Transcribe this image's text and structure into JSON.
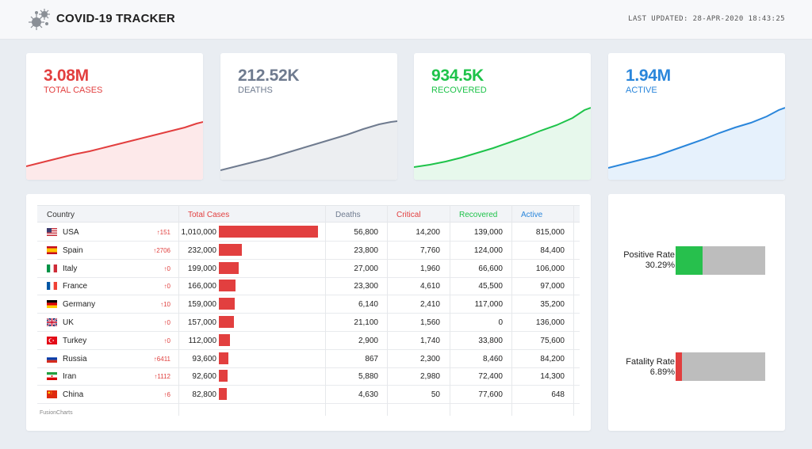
{
  "header": {
    "title": "COVID-19 TRACKER",
    "last_updated": "LAST UPDATED: 28-APR-2020 18:43:25",
    "logo_icon": "virus-icon"
  },
  "stats": [
    {
      "value": "3.08M",
      "label": "TOTAL CASES",
      "color": "#e23f3f",
      "fill": "#fde9ea"
    },
    {
      "value": "212.52K",
      "label": "DEATHS",
      "color": "#6f7b8f",
      "fill": "#eceef1"
    },
    {
      "value": "934.5K",
      "label": "RECOVERED",
      "color": "#1ec34a",
      "fill": "#e7f8ec"
    },
    {
      "value": "1.94M",
      "label": "ACTIVE",
      "color": "#2a86db",
      "fill": "#e6f1fc"
    }
  ],
  "table": {
    "headers": {
      "country": "Country",
      "total_cases": "Total Cases",
      "deaths": "Deaths",
      "critical": "Critical",
      "recovered": "Recovered",
      "active": "Active"
    },
    "header_colors": {
      "total_cases": "#e23f3f",
      "deaths": "#6f7b8f",
      "critical": "#e23f3f",
      "recovered": "#1ec34a",
      "active": "#2a86db"
    },
    "rows": [
      {
        "country": "USA",
        "flag": "us-flag-icon",
        "delta": "↑151",
        "total": "1,010,000",
        "total_value": 1010000,
        "deaths": "56,800",
        "critical": "14,200",
        "recovered": "139,000",
        "active": "815,000"
      },
      {
        "country": "Spain",
        "flag": "spain-flag-icon",
        "delta": "↑2706",
        "total": "232,000",
        "total_value": 232000,
        "deaths": "23,800",
        "critical": "7,760",
        "recovered": "124,000",
        "active": "84,400"
      },
      {
        "country": "Italy",
        "flag": "italy-flag-icon",
        "delta": "↑0",
        "total": "199,000",
        "total_value": 199000,
        "deaths": "27,000",
        "critical": "1,960",
        "recovered": "66,600",
        "active": "106,000"
      },
      {
        "country": "France",
        "flag": "france-flag-icon",
        "delta": "↑0",
        "total": "166,000",
        "total_value": 166000,
        "deaths": "23,300",
        "critical": "4,610",
        "recovered": "45,500",
        "active": "97,000"
      },
      {
        "country": "Germany",
        "flag": "germany-flag-icon",
        "delta": "↑10",
        "total": "159,000",
        "total_value": 159000,
        "deaths": "6,140",
        "critical": "2,410",
        "recovered": "117,000",
        "active": "35,200"
      },
      {
        "country": "UK",
        "flag": "uk-flag-icon",
        "delta": "↑0",
        "total": "157,000",
        "total_value": 157000,
        "deaths": "21,100",
        "critical": "1,560",
        "recovered": "0",
        "active": "136,000"
      },
      {
        "country": "Turkey",
        "flag": "turkey-flag-icon",
        "delta": "↑0",
        "total": "112,000",
        "total_value": 112000,
        "deaths": "2,900",
        "critical": "1,740",
        "recovered": "33,800",
        "active": "75,600"
      },
      {
        "country": "Russia",
        "flag": "russia-flag-icon",
        "delta": "↑6411",
        "total": "93,600",
        "total_value": 93600,
        "deaths": "867",
        "critical": "2,300",
        "recovered": "8,460",
        "active": "84,200"
      },
      {
        "country": "Iran",
        "flag": "iran-flag-icon",
        "delta": "↑1112",
        "total": "92,600",
        "total_value": 92600,
        "deaths": "5,880",
        "critical": "2,980",
        "recovered": "72,400",
        "active": "14,300"
      },
      {
        "country": "China",
        "flag": "china-flag-icon",
        "delta": "↑6",
        "total": "82,800",
        "total_value": 82800,
        "deaths": "4,630",
        "critical": "50",
        "recovered": "77,600",
        "active": "648"
      }
    ],
    "footer": "FusionCharts"
  },
  "rates": [
    {
      "label": "Positive Rate",
      "value": "30.29%",
      "fraction": 0.3029,
      "color": "#27c04d"
    },
    {
      "label": "Fatality Rate",
      "value": "6.89%",
      "fraction": 0.0689,
      "color": "#e23f3f"
    }
  ]
}
